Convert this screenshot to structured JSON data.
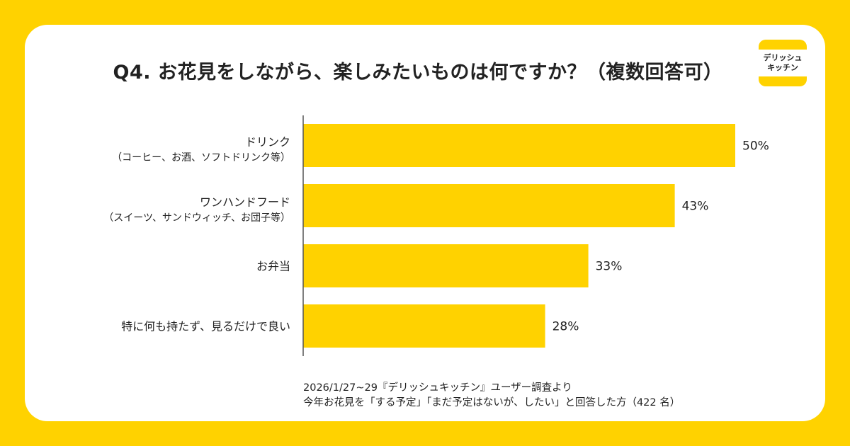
{
  "logo": {
    "line1": "デリッシュ",
    "line2": "キッチン"
  },
  "chart_data": {
    "type": "bar",
    "orientation": "horizontal",
    "title": "Q4. お花見をしながら、楽しみたいものは何ですか？（複数回答可）",
    "categories": [
      {
        "label": "ドリンク",
        "sub": "（コーヒー、お酒、ソフトドリンク等）"
      },
      {
        "label": "ワンハンドフード",
        "sub": "（スイーツ、サンドウィッチ、お団子等）"
      },
      {
        "label": "お弁当",
        "sub": ""
      },
      {
        "label": "特に何も持たず、見るだけで良い",
        "sub": ""
      }
    ],
    "values": [
      50,
      43,
      33,
      28
    ],
    "value_labels": [
      "50%",
      "43%",
      "33%",
      "28%"
    ],
    "unit": "%",
    "xlim": [
      0,
      50
    ],
    "bar_color": "#FFD200",
    "grid": false
  },
  "footnote": {
    "line1": "2026/1/27~29『デリッシュキッチン』ユーザー調査より",
    "line2": "今年お花見を「する予定」「まだ予定はないが、したい」と回答した方（422 名）"
  }
}
